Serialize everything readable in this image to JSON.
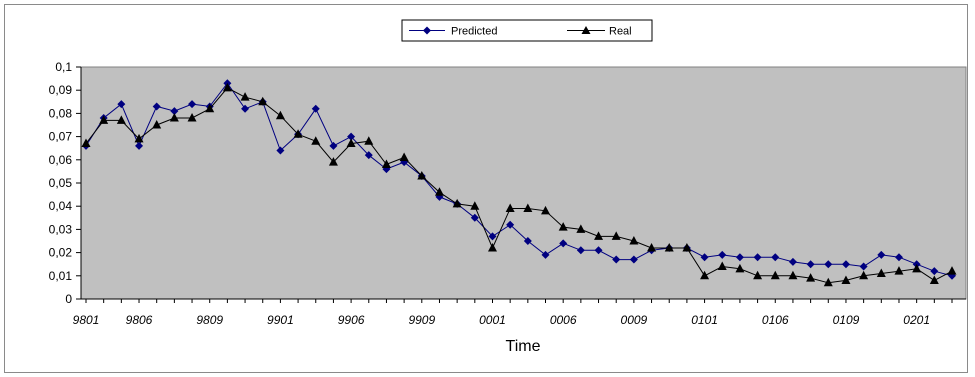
{
  "chart_data": {
    "type": "line",
    "xlabel": "Time",
    "ylabel": "",
    "ylim": [
      0,
      0.1
    ],
    "y_ticks": [
      "0",
      "0,01",
      "0,02",
      "0,03",
      "0,04",
      "0,05",
      "0,06",
      "0,07",
      "0,08",
      "0,09",
      "0,1"
    ],
    "x_tick_labels": [
      {
        "index": 0,
        "label": "9801"
      },
      {
        "index": 3,
        "label": "9806"
      },
      {
        "index": 7,
        "label": "9809"
      },
      {
        "index": 11,
        "label": "9901"
      },
      {
        "index": 15,
        "label": "9906"
      },
      {
        "index": 19,
        "label": "9909"
      },
      {
        "index": 23,
        "label": "0001"
      },
      {
        "index": 27,
        "label": "0006"
      },
      {
        "index": 31,
        "label": "0009"
      },
      {
        "index": 35,
        "label": "0101"
      },
      {
        "index": 39,
        "label": "0106"
      },
      {
        "index": 43,
        "label": "0109"
      },
      {
        "index": 47,
        "label": "0201"
      }
    ],
    "grid": false,
    "legend_position": "top-center",
    "plot_background": "#c0c0c0",
    "series": [
      {
        "name": "Predicted",
        "color": "#000080",
        "marker": "diamond",
        "values": [
          0.066,
          0.078,
          0.084,
          0.066,
          0.083,
          0.081,
          0.084,
          0.083,
          0.093,
          0.082,
          0.085,
          0.064,
          0.071,
          0.082,
          0.066,
          0.07,
          0.062,
          0.056,
          0.059,
          0.053,
          0.044,
          0.041,
          0.035,
          0.027,
          0.032,
          0.025,
          0.019,
          0.024,
          0.021,
          0.021,
          0.017,
          0.017,
          0.021,
          0.022,
          0.022,
          0.018,
          0.019,
          0.018,
          0.018,
          0.018,
          0.016,
          0.015,
          0.015,
          0.015,
          0.014,
          0.019,
          0.018,
          0.015,
          0.012,
          0.01
        ]
      },
      {
        "name": "Real",
        "color": "#000000",
        "marker": "triangle",
        "values": [
          0.067,
          0.077,
          0.077,
          0.069,
          0.075,
          0.078,
          0.078,
          0.082,
          0.091,
          0.087,
          0.085,
          0.079,
          0.071,
          0.068,
          0.059,
          0.067,
          0.068,
          0.058,
          0.061,
          0.053,
          0.046,
          0.041,
          0.04,
          0.022,
          0.039,
          0.039,
          0.038,
          0.031,
          0.03,
          0.027,
          0.027,
          0.025,
          0.022,
          0.022,
          0.022,
          0.01,
          0.014,
          0.013,
          0.01,
          0.01,
          0.01,
          0.009,
          0.007,
          0.008,
          0.01,
          0.011,
          0.012,
          0.013,
          0.008,
          0.012
        ]
      }
    ]
  }
}
